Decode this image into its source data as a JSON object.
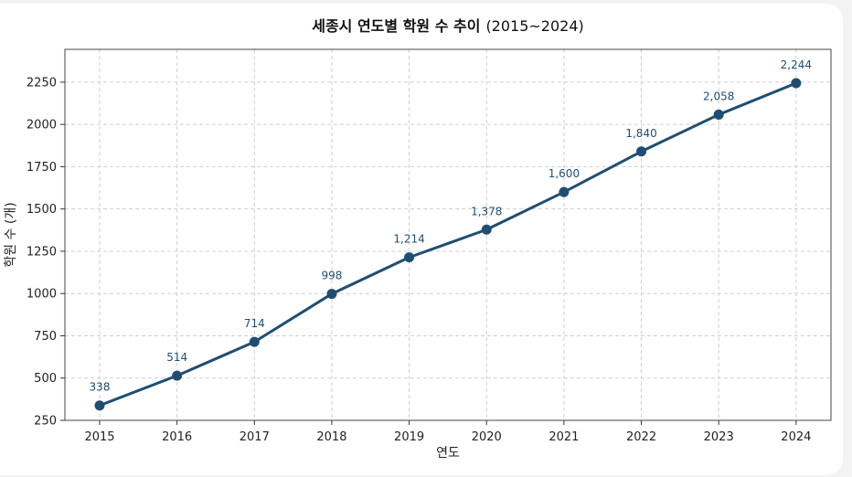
{
  "chart_data": {
    "type": "line",
    "title": "세종시 연도별 학원 수 추이",
    "subtitle": "(2015~2024)",
    "xlabel": "연도",
    "ylabel": "학원 수 (개)",
    "categories": [
      "2015",
      "2016",
      "2017",
      "2018",
      "2019",
      "2020",
      "2021",
      "2022",
      "2023",
      "2024"
    ],
    "values": [
      338,
      514,
      714,
      998,
      1214,
      1378,
      1600,
      1840,
      2058,
      2244
    ],
    "value_labels": [
      "338",
      "514",
      "714",
      "998",
      "1,214",
      "1,378",
      "1,600",
      "1,840",
      "2,058",
      "2,244"
    ],
    "yticks": [
      "250",
      "500",
      "750",
      "1000",
      "1250",
      "1500",
      "1750",
      "2000",
      "2250"
    ],
    "ylim": [
      250,
      2444
    ],
    "grid": true,
    "color": "#1f4e72"
  }
}
